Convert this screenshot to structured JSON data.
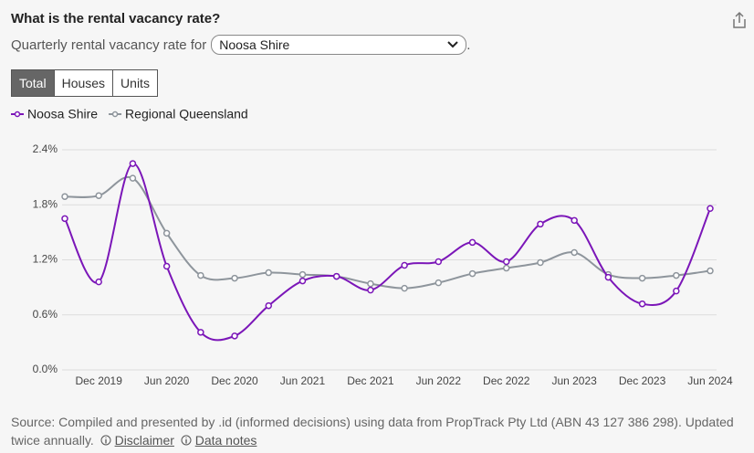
{
  "header": {
    "title": "What is the rental vacancy rate?",
    "subtitle": "Quarterly rental vacancy rate for",
    "region": "Noosa Shire",
    "period": "."
  },
  "tabs": [
    "Total",
    "Houses",
    "Units"
  ],
  "chart_data": {
    "type": "line",
    "categories": [
      null,
      "Dec 2019",
      null,
      "Jun 2020",
      null,
      "Dec 2020",
      null,
      "Jun 2021",
      null,
      "Dec 2021",
      null,
      "Jun 2022",
      null,
      "Dec 2022",
      null,
      "Jun 2023",
      null,
      "Dec 2023",
      null,
      "Jun 2024"
    ],
    "series": [
      {
        "name": "Noosa Shire",
        "color": "#7b16b8",
        "values": [
          1.65,
          0.96,
          2.25,
          1.13,
          0.41,
          0.37,
          0.7,
          0.97,
          1.02,
          0.87,
          1.14,
          1.18,
          1.39,
          1.18,
          1.59,
          1.63,
          1.01,
          0.72,
          0.86,
          1.76
        ]
      },
      {
        "name": "Regional Queensland",
        "color": "#8e959c",
        "values": [
          1.89,
          1.9,
          2.09,
          1.49,
          1.03,
          1.0,
          1.06,
          1.04,
          1.02,
          0.94,
          0.89,
          0.95,
          1.05,
          1.11,
          1.17,
          1.28,
          1.04,
          1.0,
          1.03,
          1.08
        ]
      }
    ],
    "ylim": [
      0,
      2.4
    ],
    "yticks": [
      {
        "value": 0,
        "label": "0.0%"
      },
      {
        "value": 0.6,
        "label": "0.6%"
      },
      {
        "value": 1.2,
        "label": "1.2%"
      },
      {
        "value": 1.8,
        "label": "1.8%"
      },
      {
        "value": 2.4,
        "label": "2.4%"
      }
    ],
    "grid": true,
    "legend": "top-left",
    "smooth": true
  },
  "footer": {
    "source": "Source: Compiled and presented by .id (informed decisions) using data from PropTrack Pty Ltd (ABN 43 127 386 298). Updated twice annually.",
    "links": [
      "Disclaimer",
      "Data notes"
    ]
  }
}
